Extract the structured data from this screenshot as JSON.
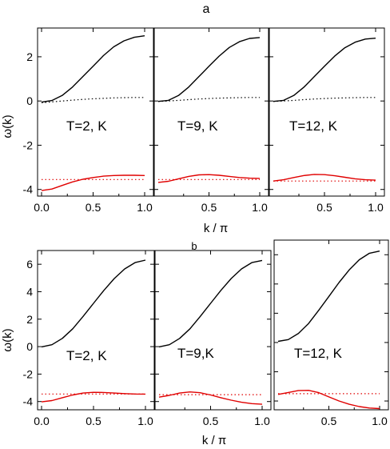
{
  "figure": {
    "panel_labels": [
      "a",
      "b"
    ],
    "xlabel": "k / π",
    "ylabel": "ω(k)"
  },
  "chart_data": [
    {
      "type": "line",
      "group": "a",
      "title": "",
      "label": "T=2, K",
      "xlabel": "k / π",
      "ylabel": "ω(k)",
      "xlim": [
        0,
        1
      ],
      "ylim": [
        -4.3,
        3.3
      ],
      "xticks": [
        "0.0",
        "0.5",
        "1.0"
      ],
      "yticks": [
        "2",
        "0",
        "-2",
        "-4"
      ],
      "x": [
        0,
        0.1,
        0.2,
        0.3,
        0.4,
        0.5,
        0.6,
        0.7,
        0.8,
        0.9,
        1.0
      ],
      "series": [
        {
          "color": "#000000",
          "style": "solid",
          "values": [
            -0.05,
            0.02,
            0.25,
            0.63,
            1.1,
            1.57,
            2.05,
            2.45,
            2.72,
            2.88,
            2.95
          ]
        },
        {
          "color": "#000000",
          "style": "dotted",
          "values": [
            -0.08,
            -0.04,
            0.0,
            0.04,
            0.07,
            0.1,
            0.12,
            0.14,
            0.15,
            0.16,
            0.16
          ]
        },
        {
          "color": "#e00000",
          "style": "solid",
          "values": [
            -4.05,
            -3.98,
            -3.82,
            -3.66,
            -3.54,
            -3.46,
            -3.4,
            -3.37,
            -3.36,
            -3.36,
            -3.37
          ]
        },
        {
          "color": "#e00000",
          "style": "dotted",
          "values": [
            -3.55,
            -3.55,
            -3.55,
            -3.55,
            -3.55,
            -3.55,
            -3.55,
            -3.55,
            -3.55,
            -3.55,
            -3.55
          ]
        }
      ]
    },
    {
      "type": "line",
      "group": "a",
      "title": "",
      "label": "T=9, K",
      "xlabel": "k / π",
      "ylabel": "ω(k)",
      "xlim": [
        0,
        1
      ],
      "ylim": [
        -4.3,
        3.3
      ],
      "xticks": [
        "0.5",
        "1.0"
      ],
      "yticks": [],
      "x": [
        0,
        0.1,
        0.2,
        0.3,
        0.4,
        0.5,
        0.6,
        0.7,
        0.8,
        0.9,
        1.0
      ],
      "series": [
        {
          "color": "#000000",
          "style": "solid",
          "values": [
            -0.02,
            0.03,
            0.25,
            0.63,
            1.1,
            1.57,
            2.03,
            2.42,
            2.68,
            2.83,
            2.87
          ]
        },
        {
          "color": "#000000",
          "style": "dotted",
          "values": [
            -0.02,
            0.0,
            0.03,
            0.06,
            0.09,
            0.11,
            0.13,
            0.14,
            0.15,
            0.16,
            0.16
          ]
        },
        {
          "color": "#e00000",
          "style": "solid",
          "values": [
            -3.68,
            -3.63,
            -3.52,
            -3.41,
            -3.34,
            -3.33,
            -3.36,
            -3.41,
            -3.46,
            -3.49,
            -3.5
          ]
        },
        {
          "color": "#e00000",
          "style": "dotted",
          "values": [
            -3.55,
            -3.55,
            -3.55,
            -3.55,
            -3.55,
            -3.55,
            -3.55,
            -3.55,
            -3.55,
            -3.55,
            -3.55
          ]
        }
      ]
    },
    {
      "type": "line",
      "group": "a",
      "title": "",
      "label": "T=12, K",
      "xlabel": "k / π",
      "ylabel": "ω(k)",
      "xlim": [
        0,
        1
      ],
      "ylim": [
        -4.3,
        3.3
      ],
      "xticks": [
        "0.5",
        "1.0"
      ],
      "yticks": [],
      "x": [
        0,
        0.1,
        0.2,
        0.3,
        0.4,
        0.5,
        0.6,
        0.7,
        0.8,
        0.9,
        1.0
      ],
      "series": [
        {
          "color": "#000000",
          "style": "solid",
          "values": [
            -0.02,
            0.03,
            0.25,
            0.63,
            1.1,
            1.57,
            2.03,
            2.41,
            2.66,
            2.8,
            2.84
          ]
        },
        {
          "color": "#000000",
          "style": "dotted",
          "values": [
            -0.02,
            0.0,
            0.03,
            0.06,
            0.09,
            0.11,
            0.13,
            0.14,
            0.15,
            0.16,
            0.16
          ]
        },
        {
          "color": "#e00000",
          "style": "solid",
          "values": [
            -3.62,
            -3.56,
            -3.46,
            -3.37,
            -3.32,
            -3.33,
            -3.38,
            -3.45,
            -3.52,
            -3.56,
            -3.58
          ]
        },
        {
          "color": "#e00000",
          "style": "dotted",
          "values": [
            -3.62,
            -3.62,
            -3.62,
            -3.62,
            -3.62,
            -3.62,
            -3.62,
            -3.62,
            -3.62,
            -3.62,
            -3.62
          ]
        }
      ]
    },
    {
      "type": "line",
      "group": "b",
      "title": "",
      "label": "T=2, K",
      "xlabel": "k / π",
      "ylabel": "ω(k)",
      "xlim": [
        0,
        1
      ],
      "ylim": [
        -4.6,
        7.0
      ],
      "xticks": [
        "0.0",
        "0.5",
        "1.0"
      ],
      "yticks": [
        "6",
        "4",
        "2",
        "0",
        "-2",
        "-4"
      ],
      "x": [
        0,
        0.1,
        0.2,
        0.3,
        0.4,
        0.5,
        0.6,
        0.7,
        0.8,
        0.9,
        1.0
      ],
      "series": [
        {
          "color": "#000000",
          "style": "solid",
          "values": [
            -0.02,
            0.14,
            0.6,
            1.3,
            2.2,
            3.15,
            4.1,
            4.96,
            5.66,
            6.12,
            6.3
          ]
        },
        {
          "color": "#e00000",
          "style": "solid",
          "values": [
            -4.02,
            -3.93,
            -3.72,
            -3.52,
            -3.38,
            -3.33,
            -3.34,
            -3.38,
            -3.42,
            -3.45,
            -3.46
          ]
        },
        {
          "color": "#e00000",
          "style": "dotted",
          "values": [
            -3.45,
            -3.45,
            -3.45,
            -3.45,
            -3.45,
            -3.45,
            -3.45,
            -3.45,
            -3.45,
            -3.45,
            -3.45
          ]
        }
      ]
    },
    {
      "type": "line",
      "group": "b",
      "title": "",
      "label": "T=9,K",
      "xlabel": "k / π",
      "ylabel": "ω(k)",
      "xlim": [
        0,
        1
      ],
      "ylim": [
        -4.6,
        7.0
      ],
      "xticks": [
        "0.5",
        "1.0"
      ],
      "yticks": [],
      "x": [
        0,
        0.1,
        0.2,
        0.3,
        0.4,
        0.5,
        0.6,
        0.7,
        0.8,
        0.9,
        1.0
      ],
      "series": [
        {
          "color": "#000000",
          "style": "solid",
          "values": [
            -0.02,
            0.14,
            0.6,
            1.3,
            2.2,
            3.15,
            4.1,
            4.96,
            5.66,
            6.12,
            6.28
          ]
        },
        {
          "color": "#e00000",
          "style": "solid",
          "values": [
            -3.68,
            -3.55,
            -3.38,
            -3.3,
            -3.36,
            -3.52,
            -3.72,
            -3.9,
            -4.05,
            -4.15,
            -4.2
          ]
        },
        {
          "color": "#e00000",
          "style": "dotted",
          "values": [
            -3.5,
            -3.5,
            -3.5,
            -3.5,
            -3.5,
            -3.5,
            -3.5,
            -3.5,
            -3.5,
            -3.5,
            -3.5
          ]
        }
      ]
    },
    {
      "type": "line",
      "group": "b",
      "title": "",
      "label": "T=12, K",
      "xlabel": "k / π",
      "ylabel": "ω(k)",
      "xlim": [
        0,
        1
      ],
      "ylim": [
        -4.6,
        7.0
      ],
      "xticks": [
        "0.5",
        "1.0"
      ],
      "yticks": [],
      "x": [
        0,
        0.1,
        0.2,
        0.3,
        0.4,
        0.5,
        0.6,
        0.7,
        0.8,
        0.9,
        1.0
      ],
      "series": [
        {
          "color": "#000000",
          "style": "solid",
          "values": [
            0.08,
            0.2,
            0.62,
            1.3,
            2.2,
            3.15,
            4.1,
            4.96,
            5.66,
            6.1,
            6.25
          ]
        },
        {
          "color": "#e00000",
          "style": "solid",
          "values": [
            -3.55,
            -3.42,
            -3.28,
            -3.27,
            -3.43,
            -3.72,
            -4.0,
            -4.22,
            -4.38,
            -4.48,
            -4.52
          ]
        },
        {
          "color": "#e00000",
          "style": "dotted",
          "values": [
            -3.5,
            -3.5,
            -3.5,
            -3.5,
            -3.5,
            -3.5,
            -3.5,
            -3.5,
            -3.5,
            -3.5,
            -3.5
          ]
        }
      ]
    }
  ]
}
